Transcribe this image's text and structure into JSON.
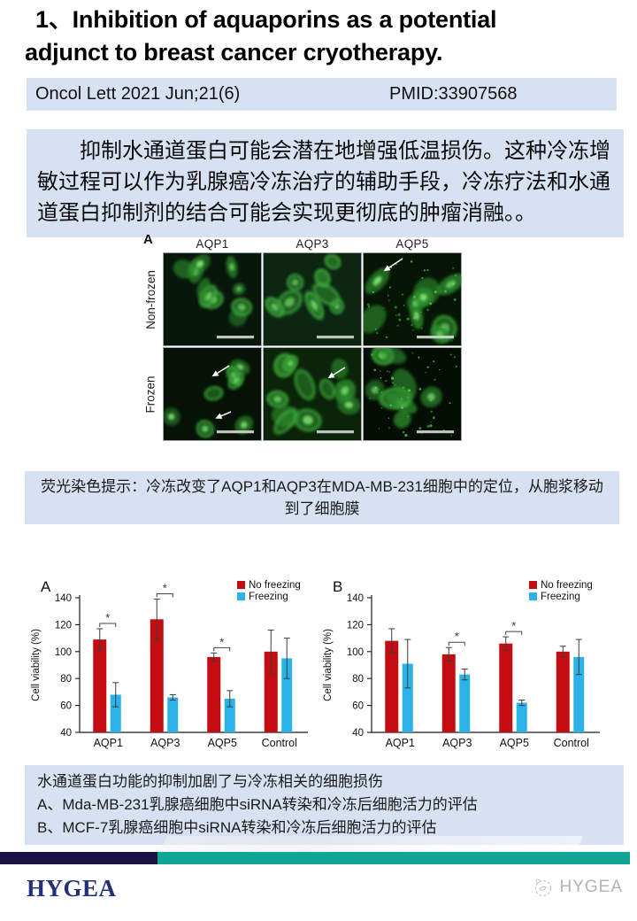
{
  "header": {
    "title": "1、Inhibition of aquaporins as a potential adjunct to breast cancer cryotherapy."
  },
  "journal_bar": {
    "citation": "Oncol Lett 2021 Jun;21(6)",
    "pmid": "PMID:33907568"
  },
  "summary": {
    "text": "抑制水通道蛋白可能会潜在地增强低温损伤。这种冷冻增敏过程可以作为乳腺癌冷冻治疗的辅助手段，冷冻疗法和水通道蛋白抑制剂的结合可能会实现更彻底的肿瘤消融。。"
  },
  "microscopy": {
    "panel_label": "A",
    "columns": [
      "AQP1",
      "AQP3",
      "AQP5"
    ],
    "rows": [
      "Non-frozen",
      "Frozen"
    ],
    "arrows": [
      {
        "row": "Non-frozen",
        "column": "AQP5"
      },
      {
        "row": "Frozen",
        "column": "AQP1"
      },
      {
        "row": "Frozen",
        "column": "AQP1"
      },
      {
        "row": "Frozen",
        "column": "AQP3"
      }
    ]
  },
  "caption1": {
    "text": "荧光染色提示：冷冻改变了AQP1和AQP3在MDA-MB-231细胞中的定位，从胞浆移动到了细胞膜"
  },
  "chart_data": [
    {
      "type": "bar",
      "panel": "A",
      "ylabel": "Cell viability (%)",
      "ylim": [
        40,
        140
      ],
      "yticks": [
        40,
        60,
        80,
        100,
        120,
        140
      ],
      "categories": [
        "AQP1",
        "AQP3",
        "AQP5",
        "Control"
      ],
      "series": [
        {
          "name": "No freezing",
          "color": "#C40D12",
          "values": [
            109,
            124,
            96,
            100
          ],
          "errors": [
            8,
            15,
            3,
            16
          ]
        },
        {
          "name": "Freezing",
          "color": "#2BB2E8",
          "values": [
            68,
            66,
            65,
            95
          ],
          "errors": [
            9,
            2,
            6,
            15
          ]
        }
      ],
      "significance": [
        {
          "category": "AQP1",
          "label": "*"
        },
        {
          "category": "AQP3",
          "label": "*"
        },
        {
          "category": "AQP5",
          "label": "*"
        }
      ],
      "legend_position": "top-right",
      "grid": false
    },
    {
      "type": "bar",
      "panel": "B",
      "ylabel": "Cell viability (%)",
      "ylim": [
        40,
        140
      ],
      "yticks": [
        40,
        60,
        80,
        100,
        120,
        140
      ],
      "categories": [
        "AQP1",
        "AQP3",
        "AQP5",
        "Control"
      ],
      "series": [
        {
          "name": "No freezing",
          "color": "#C40D12",
          "values": [
            108,
            98,
            106,
            100
          ],
          "errors": [
            9,
            5,
            5,
            4
          ]
        },
        {
          "name": "Freezing",
          "color": "#2BB2E8",
          "values": [
            91,
            83,
            62,
            96
          ],
          "errors": [
            18,
            4,
            2,
            13
          ]
        }
      ],
      "significance": [
        {
          "category": "AQP3",
          "label": "*"
        },
        {
          "category": "AQP5",
          "label": "*"
        }
      ],
      "legend_position": "top-right",
      "grid": false
    }
  ],
  "caption2": {
    "lines": [
      "水通道蛋白功能的抑制加剧了与冷冻相关的细胞损伤",
      "A、Mda-MB-231乳腺癌细胞中siRNA转染和冷冻后细胞活力的评估",
      "B、MCF-7乳腺癌细胞中siRNA转染和冷冻后细胞活力的评估"
    ]
  },
  "footer": {
    "logo_text": "HYGEA",
    "watermark_text": "HYGEA"
  },
  "colors": {
    "box_blue": "#D7E1F1",
    "footer_navy": "#181245",
    "footer_teal": "#11A596",
    "logo_navy": "#232E7D",
    "bar_red": "#C40D12",
    "bar_blue": "#2BB2E8"
  }
}
